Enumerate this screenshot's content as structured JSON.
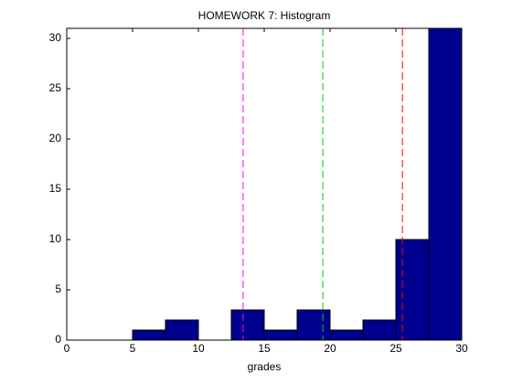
{
  "chart_data": {
    "type": "histogram",
    "title": "HOMEWORK 7: Histogram",
    "x_label": "grades",
    "bins": [
      0,
      2.5,
      5,
      7.5,
      10,
      12.5,
      15,
      17.5,
      20,
      22.5,
      25,
      27.5,
      30
    ],
    "values": [
      0,
      0,
      1,
      2,
      0,
      3,
      1,
      3,
      1,
      2,
      10,
      31
    ],
    "color": "#00008f",
    "edge_color": "#000000",
    "xlim": [
      0,
      30
    ],
    "xticks": [
      0,
      5,
      10,
      15,
      20,
      25,
      30
    ],
    "ylim": [
      0,
      31
    ],
    "yticks": [
      0,
      5,
      10,
      15,
      20,
      25,
      30
    ],
    "reference_lines": [
      {
        "x": 13.4,
        "color": "#ff00ff"
      },
      {
        "x": 19.45,
        "color": "#00cc00"
      },
      {
        "x": 25.5,
        "color": "#ff0000"
      }
    ]
  }
}
